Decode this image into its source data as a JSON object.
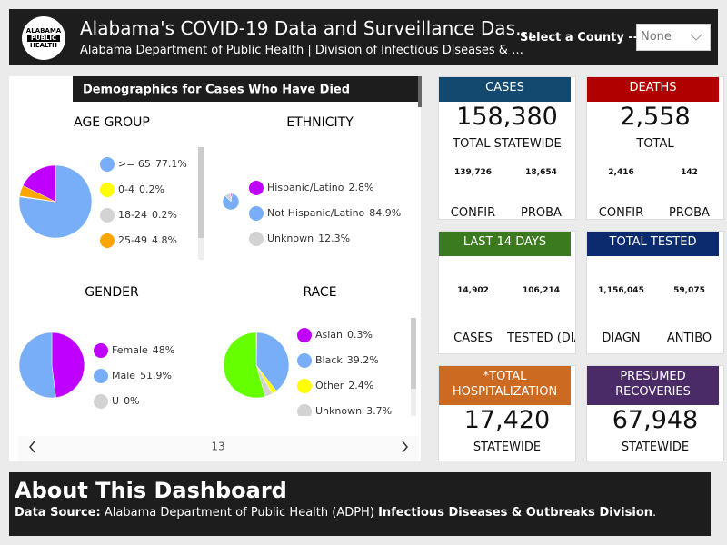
{
  "header": {
    "logo_lines": [
      "ALABAMA",
      "PUBLIC",
      "HEALTH"
    ],
    "title": "Alabama's COVID-19 Data and Surveillance Das…",
    "subtitle": "Alabama Department of Public Health | Division of Infectious Diseases & …",
    "county_select": {
      "label": "Select a County -->",
      "value": "None"
    }
  },
  "demographics": {
    "title": "Demographics for Cases Who Have Died",
    "page": "13",
    "charts": [
      {
        "type": "pie",
        "title": "AGE GROUP",
        "categories": [
          ">= 65",
          "0-4",
          "18-24",
          "25-49",
          null
        ],
        "values": [
          77.1,
          0.2,
          0.2,
          4.8,
          17.7
        ],
        "value_labels": [
          "77.1%",
          "0.2%",
          "0.2%",
          "4.8%",
          null
        ],
        "colors": [
          "#78aef8",
          "#ffff00",
          "#d3d3d3",
          "#ffa500",
          "#c000ff"
        ]
      },
      {
        "type": "pie",
        "title": "ETHNICITY",
        "categories": [
          "Hispanic/Latino",
          "Not Hispanic/Latino",
          "Unknown"
        ],
        "values": [
          2.8,
          84.9,
          12.3
        ],
        "value_labels": [
          "2.8%",
          "84.9%",
          "12.3%"
        ],
        "colors": [
          "#c000ff",
          "#78aef8",
          "#d3d3d3"
        ]
      },
      {
        "type": "pie",
        "title": "GENDER",
        "categories": [
          "Female",
          "Male",
          "U"
        ],
        "values": [
          48,
          51.9,
          0
        ],
        "value_labels": [
          "48%",
          "51.9%",
          "0%"
        ],
        "colors": [
          "#c000ff",
          "#78aef8",
          "#d3d3d3"
        ]
      },
      {
        "type": "pie",
        "title": "RACE",
        "categories": [
          "Asian",
          "Black",
          "Other",
          "Unknown",
          null
        ],
        "values": [
          0.3,
          39.2,
          2.4,
          3.7,
          54.4
        ],
        "value_labels": [
          "0.3%",
          "39.2%",
          "2.4%",
          "3.7%",
          null
        ],
        "colors": [
          "#c000ff",
          "#78aef8",
          "#ffff00",
          "#d3d3d3",
          "#66ff00"
        ]
      }
    ]
  },
  "cards": [
    {
      "title": "CASES",
      "color": "#13486f",
      "value": "158,380",
      "label": "TOTAL STATEWIDE",
      "subs": [
        {
          "value": "139,726",
          "label": "CONFIR"
        },
        {
          "value": "18,654",
          "label": "PROBA"
        }
      ]
    },
    {
      "title": "DEATHS",
      "color": "#b00000",
      "value": "2,558",
      "label": "TOTAL",
      "subs": [
        {
          "value": "2,416",
          "label": "CONFIR"
        },
        {
          "value": "142",
          "label": "PROBA"
        }
      ]
    },
    {
      "title": "LAST 14 DAYS",
      "color": "#3b7a1e",
      "subs": [
        {
          "value": "14,902",
          "label": "CASES"
        },
        {
          "value": "106,214",
          "label": "TESTED (DIAGN"
        }
      ]
    },
    {
      "title": "TOTAL TESTED",
      "color": "#0c2b6e",
      "subs": [
        {
          "value": "1,156,045",
          "label": "DIAGN"
        },
        {
          "value": "59,075",
          "label": "ANTIBO"
        }
      ]
    },
    {
      "title": "*TOTAL HOSPITALIZATION",
      "color": "#cc6a22",
      "value": "17,420",
      "label": "STATEWIDE"
    },
    {
      "title": "PRESUMED RECOVERIES",
      "color": "#4b2a68",
      "value": "67,948",
      "label": "STATEWIDE"
    }
  ],
  "about": {
    "title": "About This Dashboard",
    "source_label": "Data Source:",
    "source": "Alabama Department of Public Health (ADPH)",
    "division": "Infectious Diseases & Outbreaks Division",
    "end": "."
  }
}
